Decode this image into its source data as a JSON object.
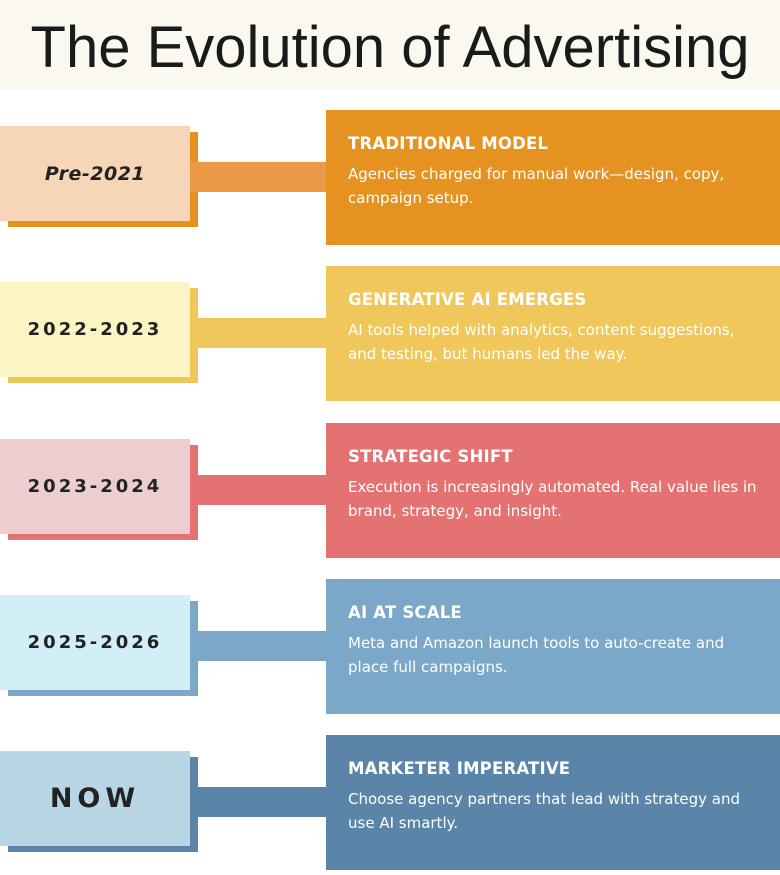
{
  "title": "The Evolution of Advertising",
  "colors": {
    "header_bg": "#fbf8f0",
    "orange": "#e69221",
    "yellow": "#f0c75a",
    "red": "#e47272",
    "blue": "#7ba7c9",
    "navy": "#5a84a8"
  },
  "timeline": [
    {
      "date": "Pre-2021",
      "heading": "TRADITIONAL MODEL",
      "text": "Agencies charged for manual work—design, copy, campaign setup."
    },
    {
      "date": "2022-2023",
      "heading": "GENERATIVE AI EMERGES",
      "text": "AI tools helped with analytics, content suggestions, and testing, but humans led the way."
    },
    {
      "date": "2023-2024",
      "heading": "STRATEGIC SHIFT",
      "text": "Execution is increasingly automated. Real value lies in brand, strategy, and insight."
    },
    {
      "date": "2025-2026",
      "heading": "AI AT SCALE",
      "text": "Meta and Amazon launch tools to auto-create and place full campaigns."
    },
    {
      "date": "NOW",
      "heading": "MARKETER IMPERATIVE",
      "text": "Choose agency partners that lead with strategy and use AI smartly."
    }
  ]
}
